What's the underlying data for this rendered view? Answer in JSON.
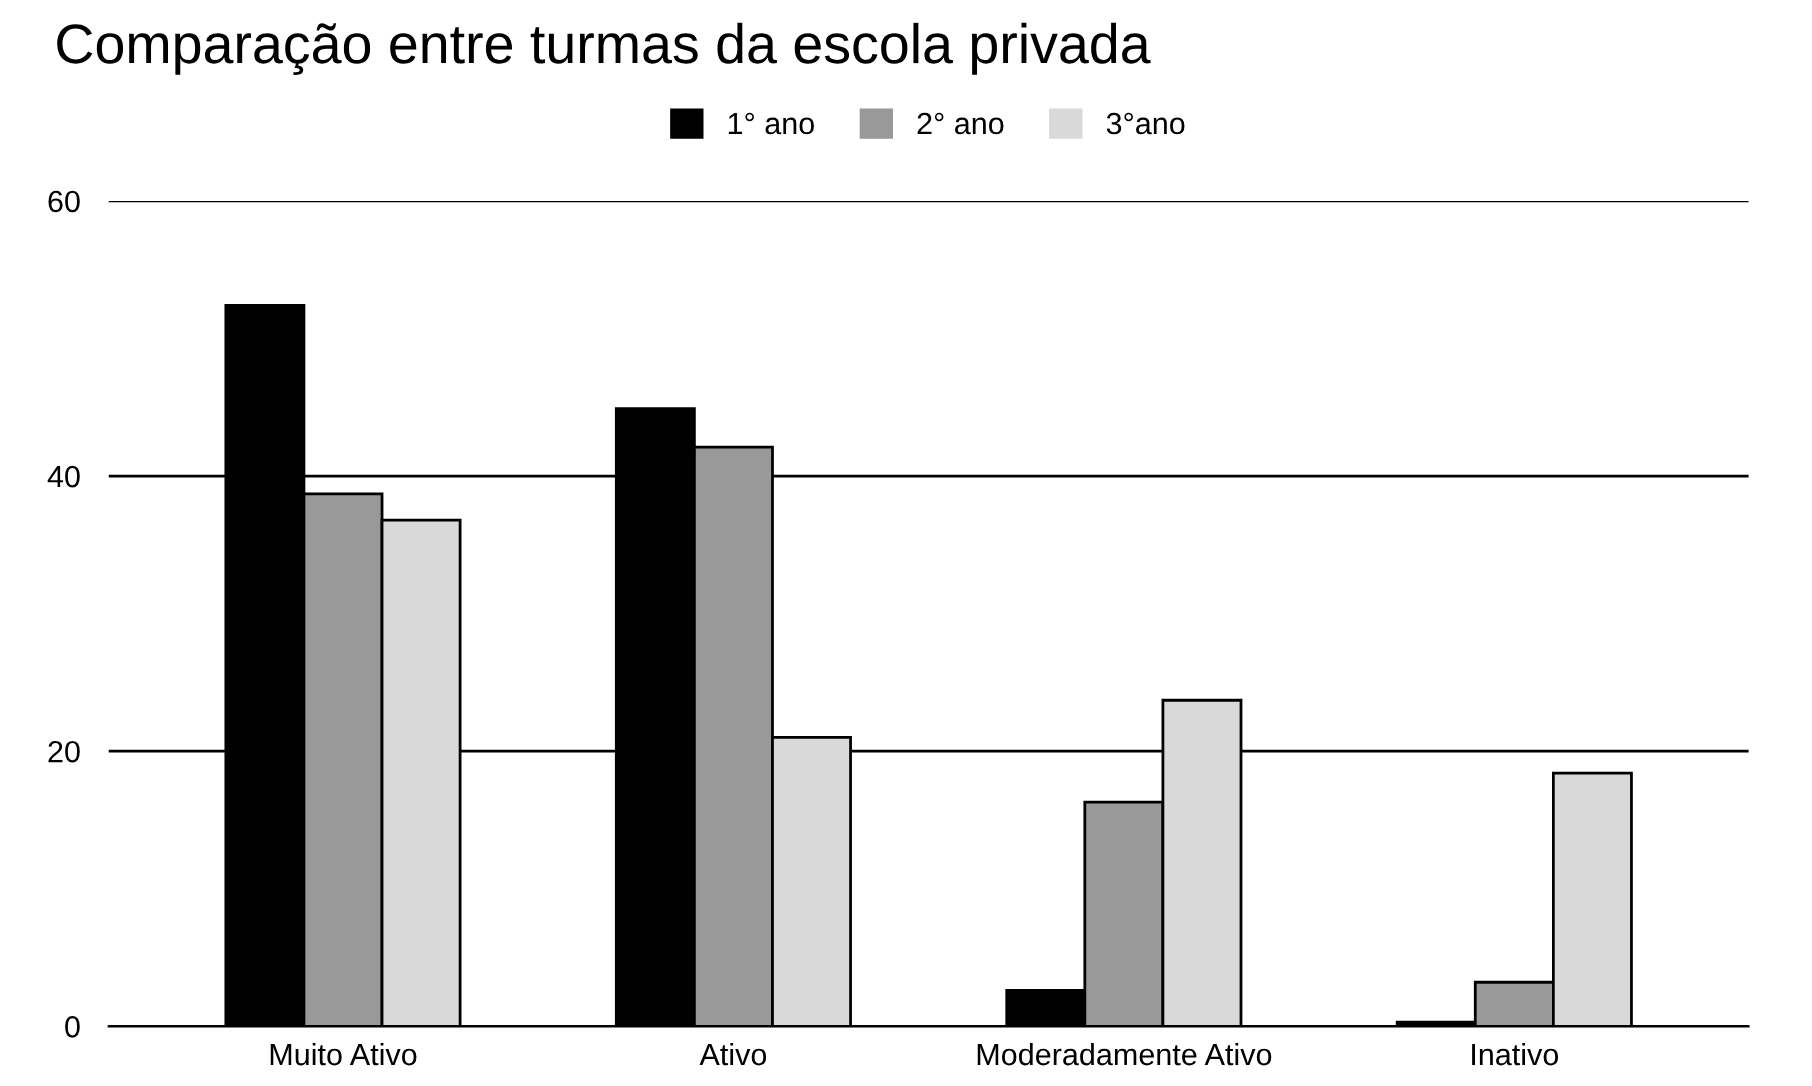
{
  "chart_data": {
    "type": "bar",
    "title": "Comparação entre turmas da escola privada",
    "categories": [
      "Muito Ativo",
      "Ativo",
      "Moderadamente Ativo",
      "Inativo"
    ],
    "series": [
      {
        "name": "1° ano",
        "color": "#000000",
        "values": [
          52.4,
          44.9,
          2.6,
          0.3
        ]
      },
      {
        "name": "2° ano",
        "color": "#999999",
        "values": [
          38.7,
          42.1,
          16.3,
          3.2
        ]
      },
      {
        "name": "3°ano",
        "color": "#d9d9d9",
        "values": [
          36.8,
          21.0,
          23.7,
          18.4
        ]
      }
    ],
    "ylim": [
      0,
      60
    ],
    "yticks": [
      0,
      20,
      40,
      60
    ],
    "grid": "y",
    "legend": "top"
  }
}
